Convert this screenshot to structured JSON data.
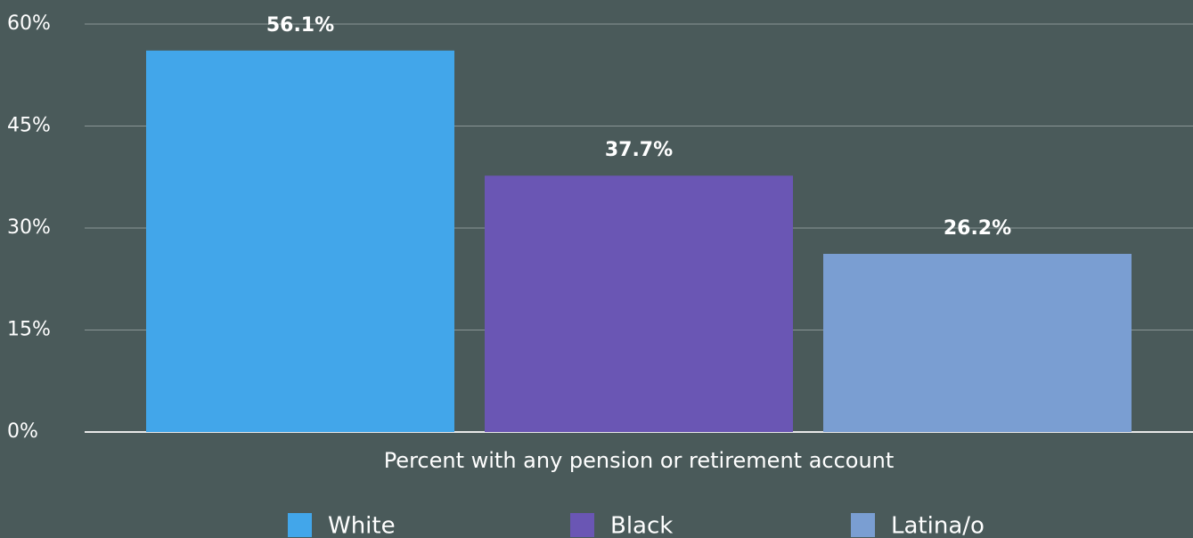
{
  "chart_data": {
    "type": "bar",
    "categories": [
      "Percent with any pension or retirement account"
    ],
    "series": [
      {
        "name": "White",
        "color": "#42a6ea",
        "values": [
          56.1
        ],
        "value_labels": [
          "56.1%"
        ]
      },
      {
        "name": "Black",
        "color": "#6a56b4",
        "values": [
          37.7
        ],
        "value_labels": [
          "37.7%"
        ]
      },
      {
        "name": "Latina/o",
        "color": "#7a9ed2",
        "values": [
          26.2
        ],
        "value_labels": [
          "26.2%"
        ]
      }
    ],
    "ylim": [
      0,
      60
    ],
    "yticks": [
      {
        "value": 0,
        "label": "0%"
      },
      {
        "value": 15,
        "label": "15%"
      },
      {
        "value": 30,
        "label": "30%"
      },
      {
        "value": 45,
        "label": "45%"
      },
      {
        "value": 60,
        "label": "60%"
      }
    ],
    "grid": true,
    "legend": "bottom"
  }
}
